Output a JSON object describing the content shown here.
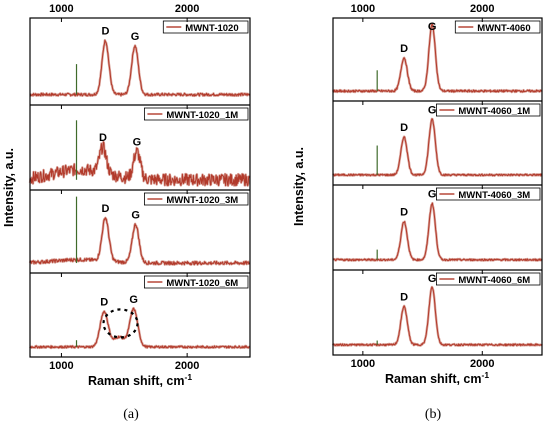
{
  "chart_data": [
    {
      "type": "line",
      "caption": "(a)",
      "xlabel_parts": [
        "Raman shift, cm",
        "-1"
      ],
      "ylabel": "Intensity, a.u.",
      "xlim": [
        750,
        2500
      ],
      "x_ticks": [
        1000,
        2000
      ],
      "x_tick_labels": [
        "1000",
        "2000"
      ],
      "series": [
        {
          "name": "MWNT-1020",
          "peaks": [
            {
              "label": "D",
              "x": 1350,
              "h": 0.62
            },
            {
              "label": "G",
              "x": 1585,
              "h": 0.56
            }
          ],
          "spikes": [
            {
              "x": 1120,
              "h": 0.35
            }
          ],
          "noise": 0.015,
          "bg": 0.0
        },
        {
          "name": "MWNT-1020_1M",
          "peaks": [
            {
              "label": "D",
              "x": 1330,
              "h": 0.3
            },
            {
              "label": "G",
              "x": 1600,
              "h": 0.32
            }
          ],
          "spikes": [
            {
              "x": 1120,
              "h": 0.7
            }
          ],
          "noise": 0.07,
          "bg": 0.12
        },
        {
          "name": "MWNT-1020_3M",
          "peaks": [
            {
              "label": "D",
              "x": 1350,
              "h": 0.52
            },
            {
              "label": "G",
              "x": 1590,
              "h": 0.46
            }
          ],
          "spikes": [
            {
              "x": 1120,
              "h": 0.8
            }
          ],
          "noise": 0.02,
          "bg": 0.04
        },
        {
          "name": "MWNT-1020_6M",
          "peaks": [
            {
              "label": "D",
              "x": 1340,
              "h": 0.42
            },
            {
              "label": "G",
              "x": 1575,
              "h": 0.45
            }
          ],
          "spikes": [
            {
              "x": 1120,
              "h": 0.08
            }
          ],
          "noise": 0.012,
          "bg": 0.0,
          "circle": true
        }
      ]
    },
    {
      "type": "line",
      "caption": "(b)",
      "xlabel_parts": [
        "Raman shift, cm",
        "-1"
      ],
      "ylabel": "Intensity, a.u.",
      "xlim": [
        750,
        2500
      ],
      "x_ticks": [
        1000,
        2000
      ],
      "x_tick_labels": [
        "1000",
        "2000"
      ],
      "series": [
        {
          "name": "MWNT-4060",
          "peaks": [
            {
              "label": "D",
              "x": 1345,
              "h": 0.4
            },
            {
              "label": "G",
              "x": 1580,
              "h": 0.8
            }
          ],
          "spikes": [
            {
              "x": 1120,
              "h": 0.25
            }
          ],
          "noise": 0.012,
          "bg": 0.0
        },
        {
          "name": "MWNT-4060_1M",
          "peaks": [
            {
              "label": "D",
              "x": 1345,
              "h": 0.45
            },
            {
              "label": "G",
              "x": 1580,
              "h": 0.66
            }
          ],
          "spikes": [
            {
              "x": 1120,
              "h": 0.35
            }
          ],
          "noise": 0.01,
          "bg": 0.0
        },
        {
          "name": "MWNT-4060_3M",
          "peaks": [
            {
              "label": "D",
              "x": 1345,
              "h": 0.45
            },
            {
              "label": "G",
              "x": 1580,
              "h": 0.66
            }
          ],
          "spikes": [
            {
              "x": 1120,
              "h": 0.12
            }
          ],
          "noise": 0.01,
          "bg": 0.0
        },
        {
          "name": "MWNT-4060_6M",
          "peaks": [
            {
              "label": "D",
              "x": 1345,
              "h": 0.45
            },
            {
              "label": "G",
              "x": 1580,
              "h": 0.68
            }
          ],
          "spikes": [
            {
              "x": 1120,
              "h": 0.05
            }
          ],
          "noise": 0.01,
          "bg": 0.0
        }
      ]
    }
  ],
  "colors": {
    "spectrum": "#b23a2b",
    "spectrum_shadow": "#d9a39a",
    "spike": "#3f6b2b",
    "axis": "#000000"
  }
}
